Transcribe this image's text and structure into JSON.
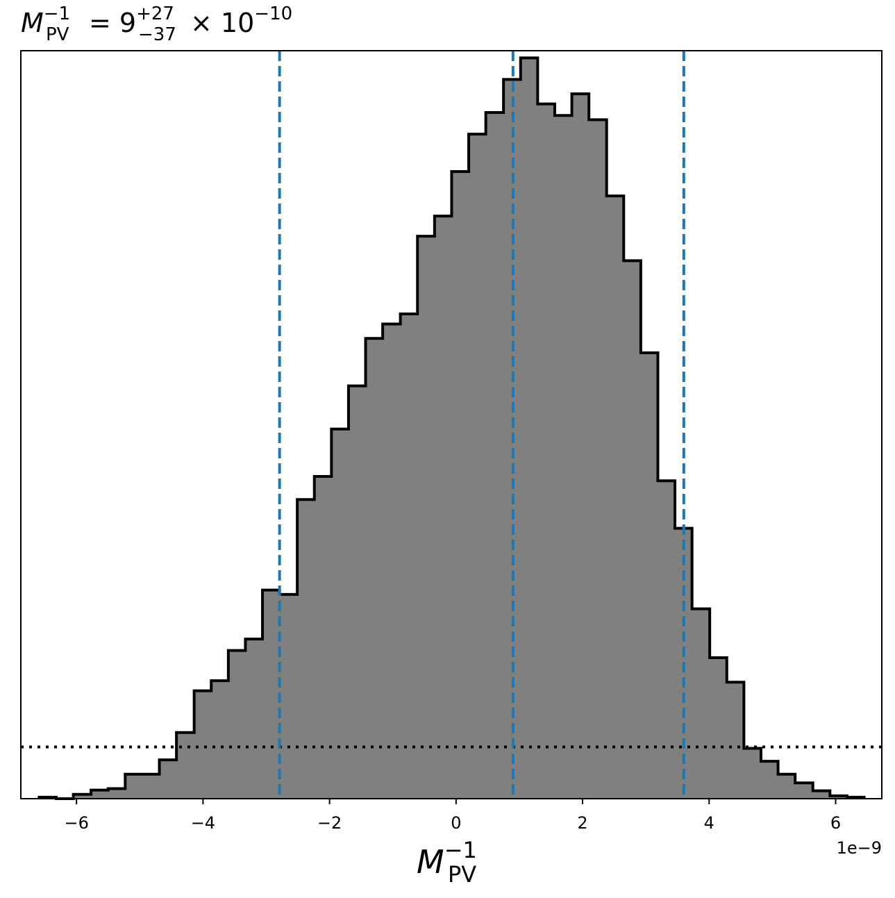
{
  "chart_data": {
    "type": "histogram",
    "title": {
      "symbol": "M",
      "subscript": "PV",
      "superscript": "−1",
      "equals": "= 9",
      "upper_err": "+27",
      "lower_err": "−37",
      "times": "× 10",
      "exponent": "−10"
    },
    "xlabel": {
      "symbol": "M",
      "subscript": "PV",
      "superscript": "−1"
    },
    "ylabel": "",
    "offset_text": "1e−9",
    "xlim": [
      -6.88,
      6.73
    ],
    "ylim": [
      0,
      1.04
    ],
    "x_ticks": [
      -6,
      -4,
      -2,
      0,
      2,
      4,
      6
    ],
    "x_tick_labels": [
      "−6",
      "−4",
      "−2",
      "0",
      "2",
      "4",
      "6"
    ],
    "y_ticks_shown": false,
    "bin_edges": [
      -6.59,
      -6.32,
      -6.05,
      -5.77,
      -5.5,
      -5.23,
      -4.96,
      -4.69,
      -4.42,
      -4.14,
      -3.87,
      -3.6,
      -3.33,
      -3.06,
      -2.79,
      -2.51,
      -2.24,
      -1.97,
      -1.7,
      -1.43,
      -1.16,
      -0.88,
      -0.61,
      -0.34,
      -0.07,
      0.2,
      0.47,
      0.75,
      1.02,
      1.29,
      1.56,
      1.83,
      2.1,
      2.38,
      2.65,
      2.92,
      3.19,
      3.46,
      3.73,
      4.01,
      4.28,
      4.55,
      4.82,
      5.09,
      5.36,
      5.64,
      5.91,
      6.18,
      6.45
    ],
    "counts": [
      0.002,
      0.0,
      0.006,
      0.012,
      0.014,
      0.034,
      0.034,
      0.054,
      0.092,
      0.15,
      0.164,
      0.206,
      0.222,
      0.29,
      0.284,
      0.416,
      0.448,
      0.514,
      0.574,
      0.64,
      0.66,
      0.674,
      0.782,
      0.81,
      0.872,
      0.924,
      0.954,
      1.0,
      1.03,
      0.966,
      0.95,
      0.98,
      0.944,
      0.838,
      0.748,
      0.62,
      0.442,
      0.376,
      0.264,
      0.196,
      0.162,
      0.07,
      0.052,
      0.034,
      0.022,
      0.011,
      0.004,
      0.002
    ],
    "hist_style": {
      "fill": "#808080",
      "edge": "#000000"
    },
    "vlines": [
      {
        "x": -2.79,
        "style": "dashed",
        "color": "#1f77b4"
      },
      {
        "x": 0.9,
        "style": "dashed",
        "color": "#1f77b4"
      },
      {
        "x": 3.6,
        "style": "dashed",
        "color": "#1f77b4"
      }
    ],
    "hline": {
      "y": 0.072,
      "style": "dotted",
      "color": "#000000"
    },
    "grid": false
  }
}
